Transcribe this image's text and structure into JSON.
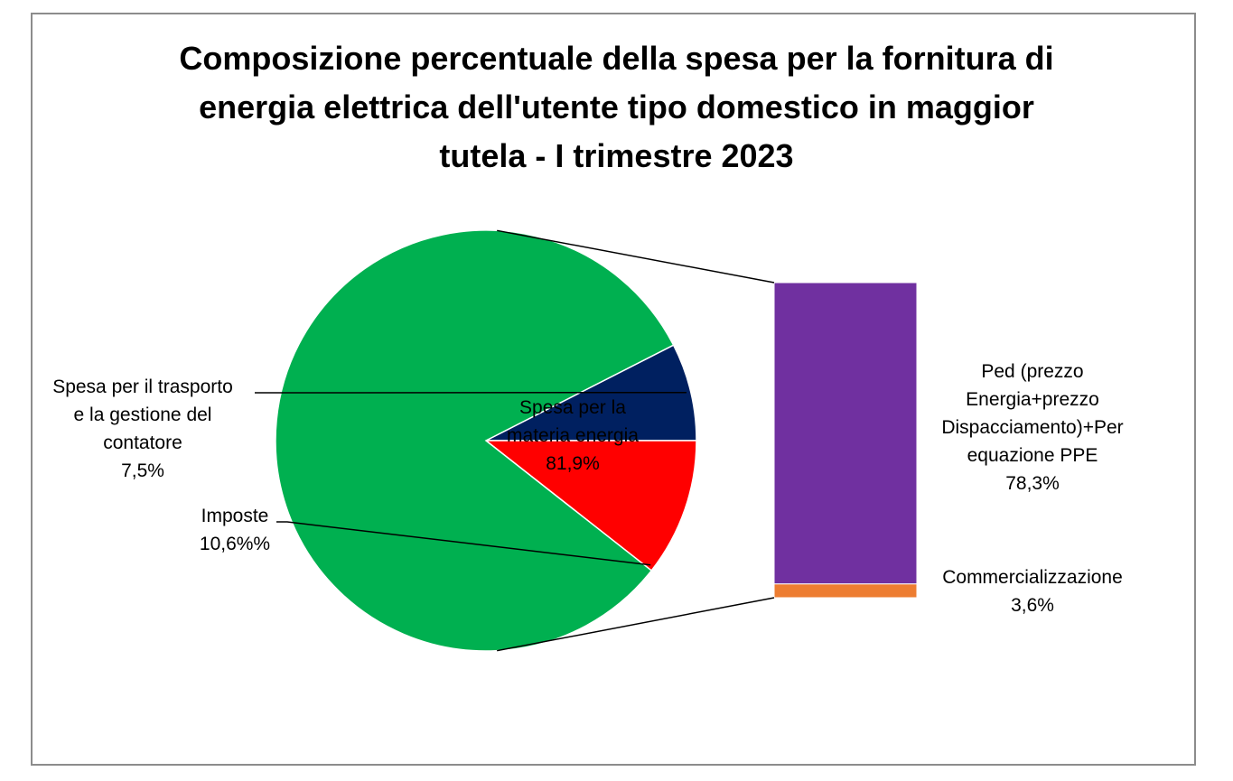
{
  "chart_data": {
    "type": "bar-of-pie",
    "title_lines": [
      "Composizione percentuale della spesa per la fornitura di",
      "energia elettrica dell'utente tipo domestico in maggior",
      "tutela - I trimestre 2023"
    ],
    "pie": {
      "start_angle_deg": 333,
      "slices": [
        {
          "key": "trasporto",
          "label_lines": [
            "Spesa per il trasporto",
            "e la gestione del",
            "contatore",
            "7,5%"
          ],
          "value": 7.5,
          "color": "#002060"
        },
        {
          "key": "imposte",
          "label_lines": [
            "Imposte",
            "10,6%%"
          ],
          "value": 10.6,
          "color": "#ff0000"
        },
        {
          "key": "materia",
          "label_lines": [
            "Spesa per la",
            "materia energia",
            "81,9%"
          ],
          "value": 81.9,
          "color": "#00b050"
        }
      ]
    },
    "bar": {
      "segments": [
        {
          "key": "commercializzazione",
          "label_lines": [
            "Commercializzazione",
            "3,6%"
          ],
          "value": 3.6,
          "color": "#ed7d31"
        },
        {
          "key": "ped",
          "label_lines": [
            "Ped (prezzo",
            "Energia+prezzo",
            "Dispacciamento)+Per",
            "equazione PPE",
            "78,3%"
          ],
          "value": 78.3,
          "color": "#7030a0"
        }
      ]
    }
  }
}
